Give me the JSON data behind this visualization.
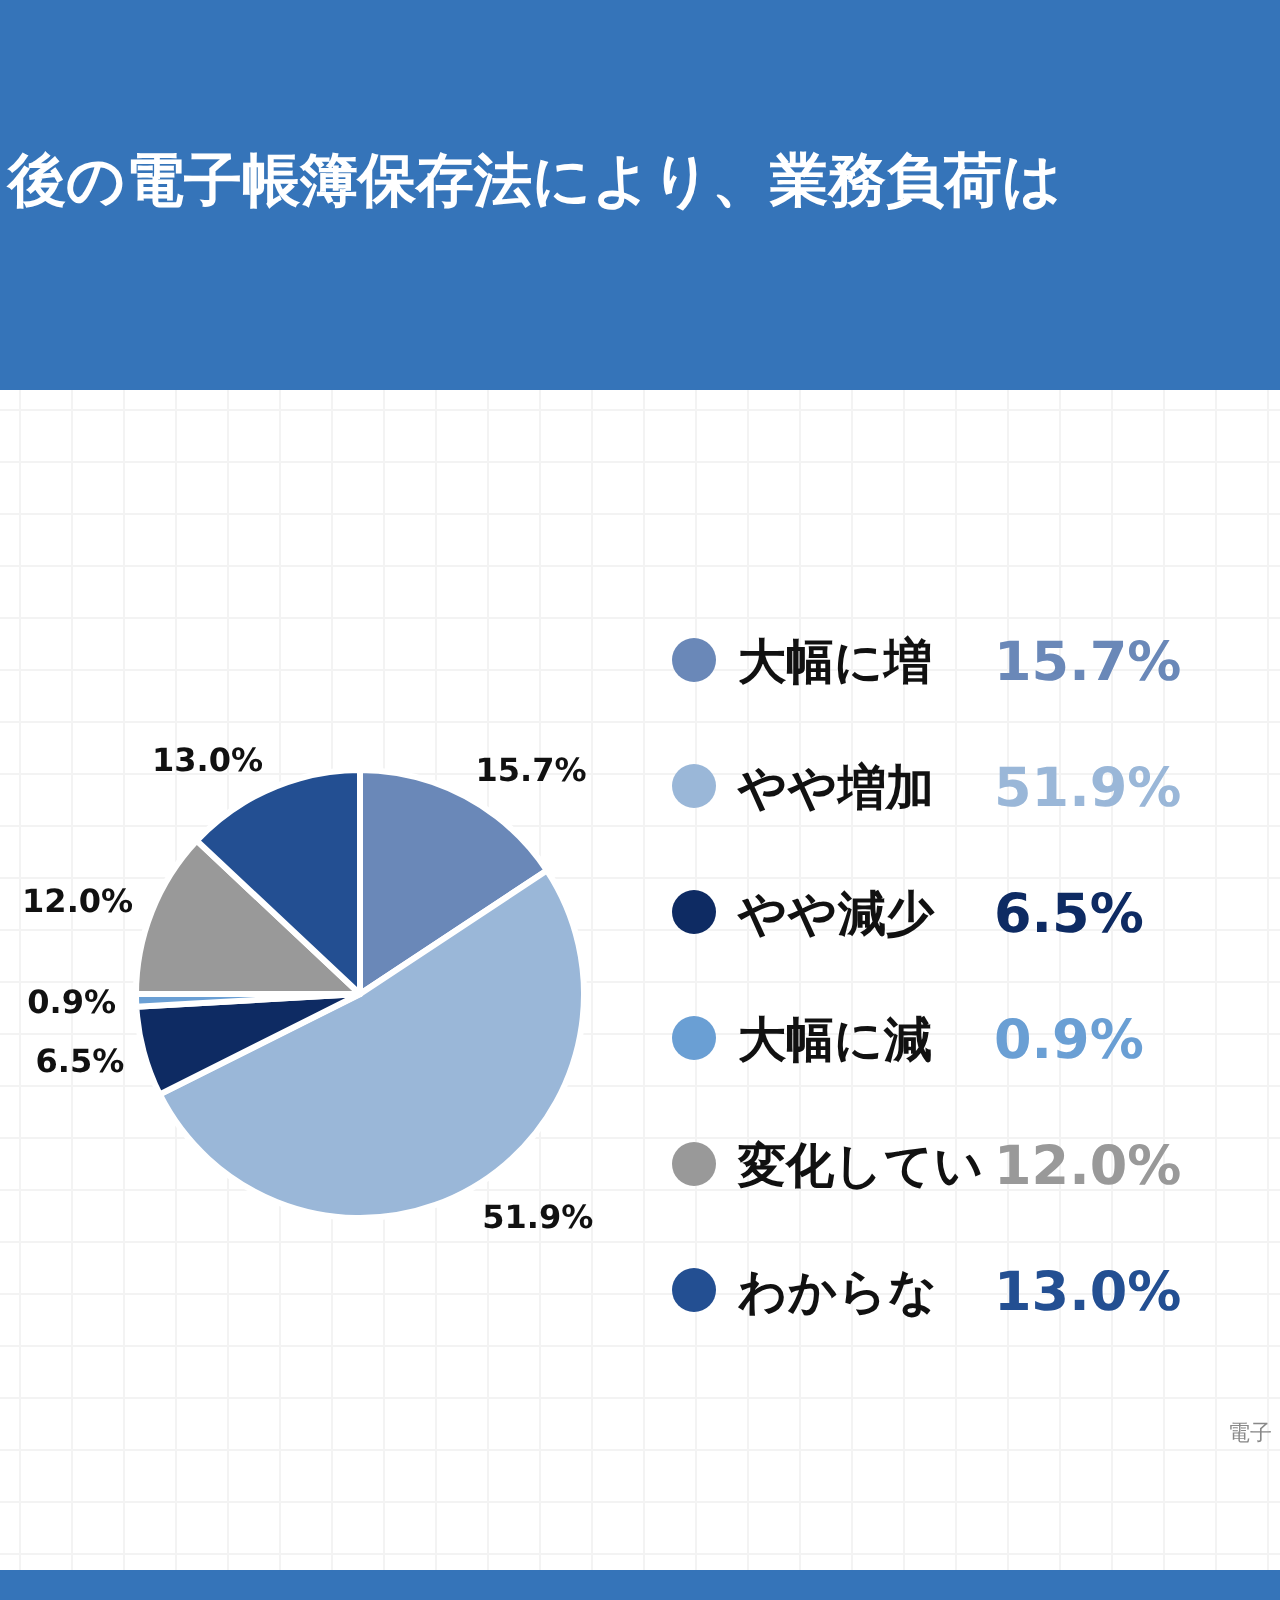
{
  "chart_data": {
    "type": "pie",
    "title": "後の電子帳簿保存法により、業務負荷は",
    "categories": [
      "大幅に増",
      "やや増加",
      "やや減少",
      "大幅に減",
      "変化してい",
      "わからな"
    ],
    "values": [
      15.7,
      51.9,
      6.5,
      0.9,
      12.0,
      13.0
    ],
    "colors": [
      "#6a88b8",
      "#9ab7d8",
      "#0e2b63",
      "#6a9fd4",
      "#999999",
      "#234f92"
    ],
    "value_labels": [
      "15.7%",
      "51.9%",
      "6.5%",
      "0.9%",
      "12.0%",
      "13.0%"
    ],
    "legend": "right",
    "annotations": [
      "電子"
    ]
  }
}
